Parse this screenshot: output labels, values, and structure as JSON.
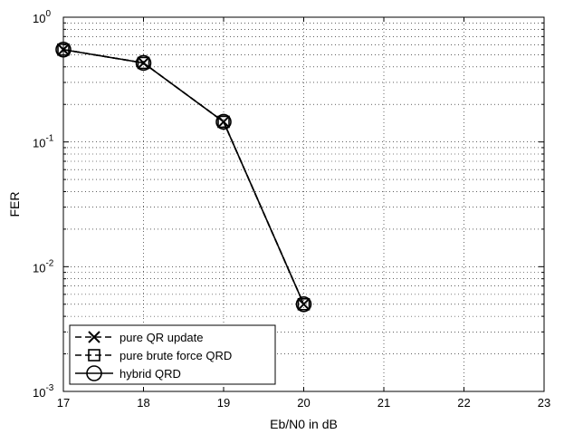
{
  "chart_data": {
    "type": "line",
    "title": "",
    "xlabel": "Eb/N0 in dB",
    "ylabel": "FER",
    "xlim": [
      17,
      23
    ],
    "ylim": [
      0.001,
      1
    ],
    "yscale": "log",
    "x_ticks": [
      17,
      18,
      19,
      20,
      21,
      22,
      23
    ],
    "y_ticks": [
      {
        "value": 0.001,
        "base": "10",
        "exp": "-3"
      },
      {
        "value": 0.01,
        "base": "10",
        "exp": "-2"
      },
      {
        "value": 0.1,
        "base": "10",
        "exp": "-1"
      },
      {
        "value": 1,
        "base": "10",
        "exp": "0"
      }
    ],
    "grid": true,
    "legend_position": "bottom-left",
    "series": [
      {
        "name": "pure QR update",
        "marker": "x",
        "line": "dashed",
        "x": [
          17,
          18,
          19,
          20
        ],
        "y": [
          0.55,
          0.43,
          0.145,
          0.005
        ]
      },
      {
        "name": "pure brute force QRD",
        "marker": "square",
        "line": "dashed",
        "x": [
          17,
          18,
          19,
          20
        ],
        "y": [
          0.55,
          0.43,
          0.145,
          0.005
        ]
      },
      {
        "name": "hybrid QRD",
        "marker": "circle",
        "line": "solid",
        "x": [
          17,
          18,
          19,
          20
        ],
        "y": [
          0.55,
          0.43,
          0.145,
          0.005
        ]
      }
    ]
  }
}
